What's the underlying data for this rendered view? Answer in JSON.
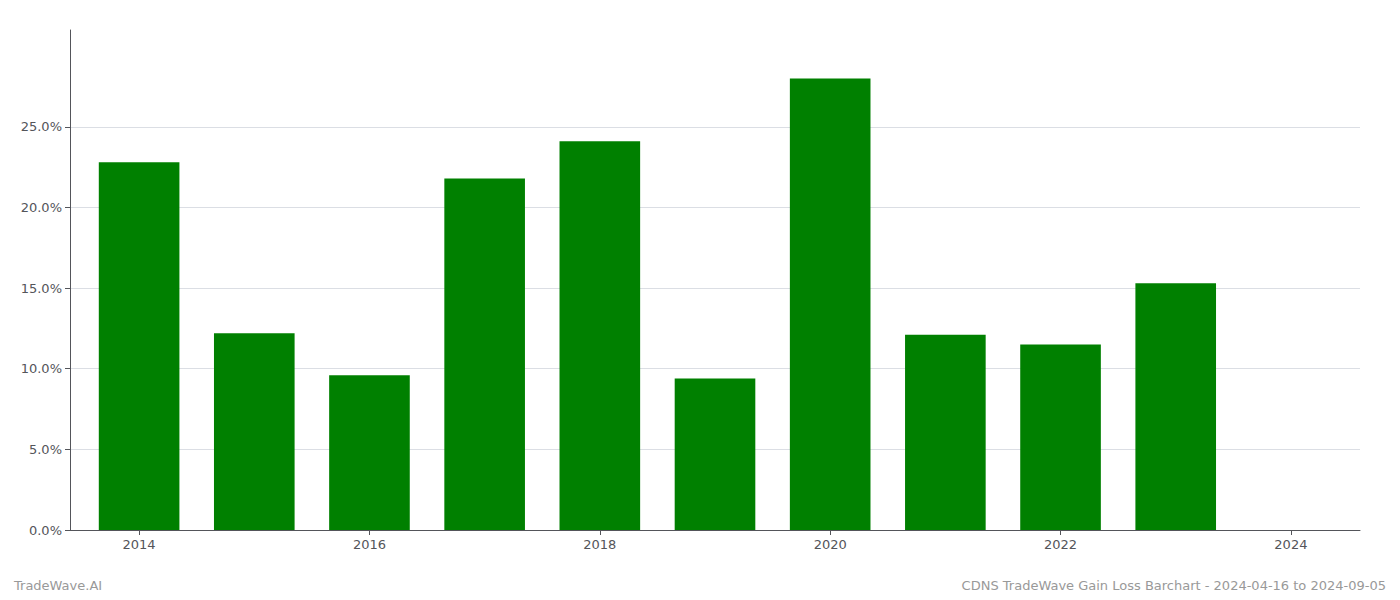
{
  "chart_data": {
    "type": "bar",
    "x": [
      2014,
      2015,
      2016,
      2017,
      2018,
      2019,
      2020,
      2021,
      2022,
      2023
    ],
    "values": [
      0.228,
      0.122,
      0.096,
      0.218,
      0.241,
      0.094,
      0.28,
      0.121,
      0.115,
      0.153
    ],
    "color": "#008000",
    "xlim": [
      2013.4,
      2024.6
    ],
    "xticks": [
      2014,
      2016,
      2018,
      2020,
      2022,
      2024
    ],
    "ylim": [
      0,
      0.31
    ],
    "yticks": [
      {
        "value": 0.0,
        "label": "0.0%"
      },
      {
        "value": 0.05,
        "label": "5.0%"
      },
      {
        "value": 0.1,
        "label": "10.0%"
      },
      {
        "value": 0.15,
        "label": "15.0%"
      },
      {
        "value": 0.2,
        "label": "20.0%"
      },
      {
        "value": 0.25,
        "label": "25.0%"
      }
    ],
    "grid": true,
    "annotations": [
      "TradeWave.AI",
      "CDNS TradeWave Gain Loss Barchart - 2024-04-16 to 2024-09-05"
    ]
  }
}
